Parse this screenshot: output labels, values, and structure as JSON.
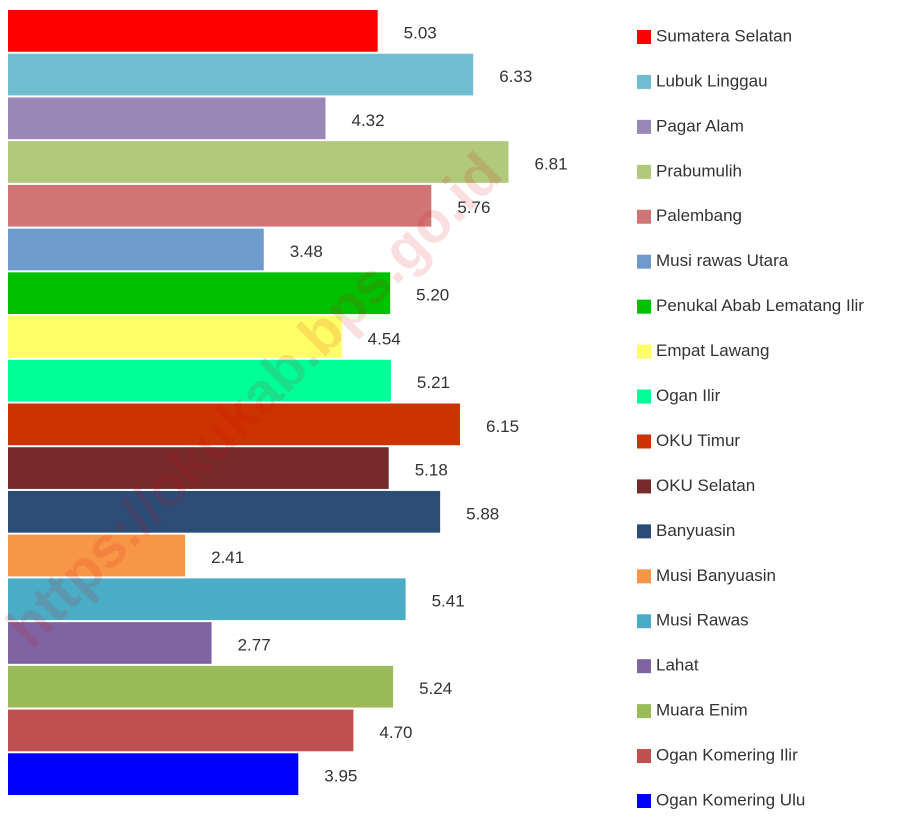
{
  "chart_data": {
    "type": "barh",
    "watermark": "https://okukab.bps.go.id",
    "categories": [
      "Sumatera Selatan",
      "Lubuk Linggau",
      "Pagar Alam",
      "Prabumulih",
      "Palembang",
      "Musi rawas Utara",
      "Penukal Abab Lematang Ilir",
      "Empat Lawang",
      "Ogan Ilir",
      "OKU Timur",
      "OKU Selatan",
      "Banyuasin",
      "Musi Banyuasin",
      "Musi Rawas",
      "Lahat",
      "Muara Enim",
      "Ogan Komering Ilir",
      "Ogan Komering Ulu"
    ],
    "values": [
      5.03,
      6.33,
      4.32,
      6.81,
      5.76,
      3.48,
      5.2,
      4.54,
      5.21,
      6.15,
      5.18,
      5.88,
      2.41,
      5.41,
      2.77,
      5.24,
      4.7,
      3.95
    ],
    "value_labels": [
      "5.03",
      "6.33",
      "4.32",
      "6.81",
      "5.76",
      "3.48",
      "5.20",
      "4.54",
      "5.21",
      "6.15",
      "5.18",
      "5.88",
      "2.41",
      "5.41",
      "2.77",
      "5.24",
      "4.70",
      "3.95"
    ],
    "colors": [
      "#ff0000",
      "#70bcd0",
      "#9b86b8",
      "#b1c97a",
      "#d07575",
      "#6f9bcc",
      "#00c000",
      "#ffff66",
      "#00ff99",
      "#cc3300",
      "#772a2a",
      "#2c4d75",
      "#f79646",
      "#4bacc6",
      "#8064a2",
      "#9bbb59",
      "#c0504d",
      "#0000ff"
    ],
    "xlim": [
      0,
      12.45
    ],
    "legend": "right"
  }
}
